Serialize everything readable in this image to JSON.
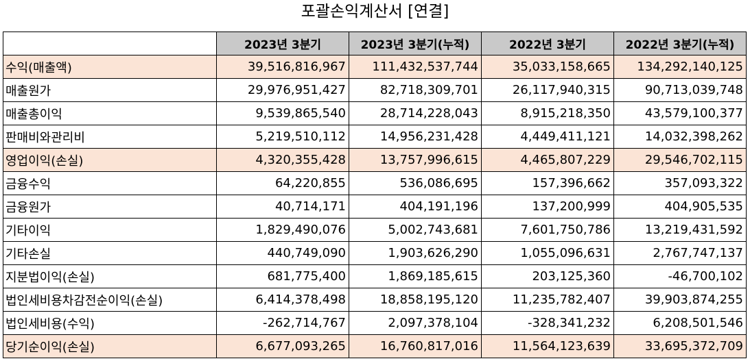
{
  "title": "포괄손익계산서 [연결]",
  "columns": [
    "",
    "2023년 3분기",
    "2023년 3분기(누적)",
    "2022년 3분기",
    "2022년 3분기(누적)"
  ],
  "rows": [
    {
      "label": "수익(매출액)",
      "highlight": true,
      "values": [
        "39,516,816,967",
        "111,432,537,744",
        "35,033,158,665",
        "134,292,140,125"
      ]
    },
    {
      "label": "매출원가",
      "highlight": false,
      "values": [
        "29,976,951,427",
        "82,718,309,701",
        "26,117,940,315",
        "90,713,039,748"
      ]
    },
    {
      "label": "매출총이익",
      "highlight": false,
      "values": [
        "9,539,865,540",
        "28,714,228,043",
        "8,915,218,350",
        "43,579,100,377"
      ]
    },
    {
      "label": "판매비와관리비",
      "highlight": false,
      "values": [
        "5,219,510,112",
        "14,956,231,428",
        "4,449,411,121",
        "14,032,398,262"
      ]
    },
    {
      "label": "영업이익(손실)",
      "highlight": true,
      "values": [
        "4,320,355,428",
        "13,757,996,615",
        "4,465,807,229",
        "29,546,702,115"
      ]
    },
    {
      "label": "금융수익",
      "highlight": false,
      "values": [
        "64,220,855",
        "536,086,695",
        "157,396,662",
        "357,093,322"
      ]
    },
    {
      "label": "금융원가",
      "highlight": false,
      "values": [
        "40,714,171",
        "404,191,196",
        "137,200,999",
        "404,905,535"
      ]
    },
    {
      "label": "기타이익",
      "highlight": false,
      "values": [
        "1,829,490,076",
        "5,002,743,681",
        "7,601,750,786",
        "13,219,431,592"
      ]
    },
    {
      "label": "기타손실",
      "highlight": false,
      "values": [
        "440,749,090",
        "1,903,626,290",
        "1,055,096,631",
        "2,767,747,137"
      ]
    },
    {
      "label": "지분법이익(손실)",
      "highlight": false,
      "values": [
        "681,775,400",
        "1,869,185,615",
        "203,125,360",
        "-46,700,102"
      ]
    },
    {
      "label": "법인세비용차감전순이익(손실)",
      "highlight": false,
      "values": [
        "6,414,378,498",
        "18,858,195,120",
        "11,235,782,407",
        "39,903,874,255"
      ]
    },
    {
      "label": "법인세비용(수익)",
      "highlight": false,
      "values": [
        "-262,714,767",
        "2,097,378,104",
        "-328,341,232",
        "6,208,501,546"
      ]
    },
    {
      "label": "당기순이익(손실)",
      "highlight": true,
      "values": [
        "6,677,093,265",
        "16,760,817,016",
        "11,564,123,639",
        "33,695,372,709"
      ]
    }
  ],
  "colors": {
    "header_bg": "#c9c9c9",
    "highlight_bg": "#fbe4d6",
    "border": "#000000"
  }
}
